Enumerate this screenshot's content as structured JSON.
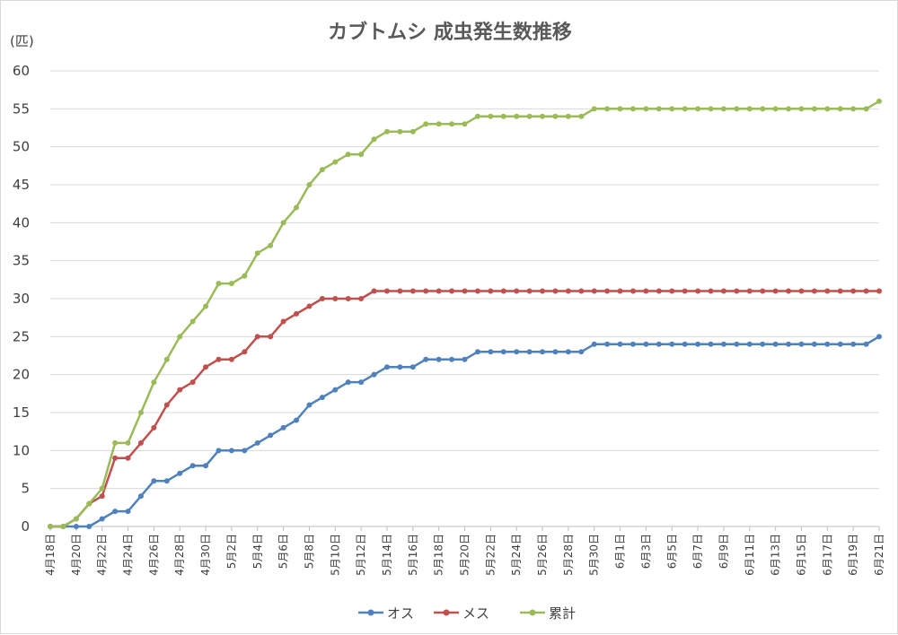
{
  "chart_data": {
    "type": "line",
    "title": "カブトムシ 成虫発生数推移",
    "ylabel": "(匹)",
    "xlabel": "",
    "ylim": [
      0,
      60
    ],
    "yticks": [
      0,
      5,
      10,
      15,
      20,
      25,
      30,
      35,
      40,
      45,
      50,
      55,
      60
    ],
    "grid": true,
    "legend_position": "bottom",
    "x": [
      "4月18日",
      "4月19日",
      "4月20日",
      "4月21日",
      "4月22日",
      "4月23日",
      "4月24日",
      "4月25日",
      "4月26日",
      "4月27日",
      "4月28日",
      "4月29日",
      "4月30日",
      "5月1日",
      "5月2日",
      "5月3日",
      "5月4日",
      "5月5日",
      "5月6日",
      "5月7日",
      "5月8日",
      "5月9日",
      "5月10日",
      "5月11日",
      "5月12日",
      "5月13日",
      "5月14日",
      "5月15日",
      "5月16日",
      "5月17日",
      "5月18日",
      "5月19日",
      "5月20日",
      "5月21日",
      "5月22日",
      "5月23日",
      "5月24日",
      "5月25日",
      "5月26日",
      "5月27日",
      "5月28日",
      "5月29日",
      "5月30日",
      "5月31日",
      "6月1日",
      "6月2日",
      "6月3日",
      "6月4日",
      "6月5日",
      "6月6日",
      "6月7日",
      "6月8日",
      "6月9日",
      "6月10日",
      "6月11日",
      "6月12日",
      "6月13日",
      "6月14日",
      "6月15日",
      "6月16日",
      "6月17日",
      "6月18日",
      "6月19日",
      "6月20日",
      "6月21日"
    ],
    "xtick_labels": [
      "4月18日",
      "4月20日",
      "4月22日",
      "4月24日",
      "4月26日",
      "4月28日",
      "4月30日",
      "5月2日",
      "5月4日",
      "5月6日",
      "5月8日",
      "5月10日",
      "5月12日",
      "5月14日",
      "5月16日",
      "5月18日",
      "5月20日",
      "5月22日",
      "5月24日",
      "5月26日",
      "5月28日",
      "5月30日",
      "6月1日",
      "6月3日",
      "6月5日",
      "6月7日",
      "6月9日",
      "6月11日",
      "6月13日",
      "6月15日",
      "6月17日",
      "6月19日",
      "6月21日"
    ],
    "series": [
      {
        "name": "オス",
        "color": "#4f81bd",
        "values": [
          0,
          0,
          0,
          0,
          1,
          2,
          2,
          4,
          6,
          6,
          7,
          8,
          8,
          10,
          10,
          10,
          11,
          12,
          13,
          14,
          16,
          17,
          18,
          19,
          19,
          20,
          21,
          21,
          21,
          22,
          22,
          22,
          22,
          23,
          23,
          23,
          23,
          23,
          23,
          23,
          23,
          23,
          24,
          24,
          24,
          24,
          24,
          24,
          24,
          24,
          24,
          24,
          24,
          24,
          24,
          24,
          24,
          24,
          24,
          24,
          24,
          24,
          24,
          24,
          25
        ]
      },
      {
        "name": "メス",
        "color": "#c0504d",
        "values": [
          0,
          0,
          1,
          3,
          4,
          9,
          9,
          11,
          13,
          16,
          18,
          19,
          21,
          22,
          22,
          23,
          25,
          25,
          27,
          28,
          29,
          30,
          30,
          30,
          30,
          31,
          31,
          31,
          31,
          31,
          31,
          31,
          31,
          31,
          31,
          31,
          31,
          31,
          31,
          31,
          31,
          31,
          31,
          31,
          31,
          31,
          31,
          31,
          31,
          31,
          31,
          31,
          31,
          31,
          31,
          31,
          31,
          31,
          31,
          31,
          31,
          31,
          31,
          31,
          31
        ]
      },
      {
        "name": "累計",
        "color": "#9bbb59",
        "values": [
          0,
          0,
          1,
          3,
          5,
          11,
          11,
          15,
          19,
          22,
          25,
          27,
          29,
          32,
          32,
          33,
          36,
          37,
          40,
          42,
          45,
          47,
          48,
          49,
          49,
          51,
          52,
          52,
          52,
          53,
          53,
          53,
          53,
          54,
          54,
          54,
          54,
          54,
          54,
          54,
          54,
          54,
          55,
          55,
          55,
          55,
          55,
          55,
          55,
          55,
          55,
          55,
          55,
          55,
          55,
          55,
          55,
          55,
          55,
          55,
          55,
          55,
          55,
          55,
          56
        ]
      }
    ]
  }
}
